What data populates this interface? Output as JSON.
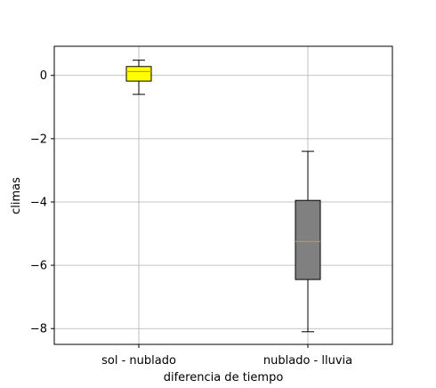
{
  "chart_data": {
    "type": "box",
    "title": "",
    "xlabel": "diferencia de tiempo",
    "ylabel": "climas",
    "ylim": [
      -8.5,
      0.92
    ],
    "yticks": [
      0,
      -2,
      -4,
      -6,
      -8
    ],
    "ytick_labels": [
      "0",
      "−2",
      "−4",
      "−6",
      "−8"
    ],
    "grid": true,
    "categories": [
      "sol - nublado",
      "nublado - lluvia"
    ],
    "boxes": [
      {
        "name": "sol - nublado",
        "whisker_low": -0.6,
        "q1": -0.18,
        "median": 0.12,
        "q3": 0.28,
        "whisker_high": 0.48,
        "color": "#ffff00"
      },
      {
        "name": "nublado - lluvia",
        "whisker_low": -8.1,
        "q1": -6.45,
        "median": -5.25,
        "q3": -3.95,
        "whisker_high": -2.4,
        "color": "#808080"
      }
    ],
    "median_color": "#ff7f0e"
  }
}
